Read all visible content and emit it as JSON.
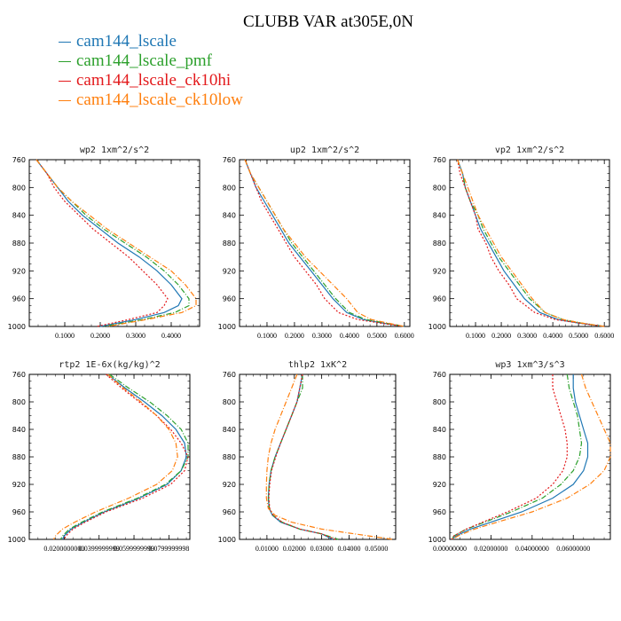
{
  "title": "CLUBB VAR at305E,0N",
  "legend": [
    {
      "label": "cam144_lscale",
      "color": "#1f77b4"
    },
    {
      "label": "cam144_lscale_pmf",
      "color": "#2ca02c"
    },
    {
      "label": "cam144_lscale_ck10hi",
      "color": "#e31a1c"
    },
    {
      "label": "cam144_lscale_ck10low",
      "color": "#ff7f0e"
    }
  ],
  "chart_data": [
    {
      "type": "line",
      "title": "wp2  1xm^2/s^2",
      "ylim": [
        760,
        1000
      ],
      "yticks": [
        760,
        800,
        840,
        880,
        920,
        960,
        1000
      ],
      "y_inverted": true,
      "xlim": [
        0,
        0.48
      ],
      "xticks": [
        0.1,
        0.2,
        0.3,
        0.4
      ],
      "xtick_labels": [
        "0.1000",
        "0.2000",
        "0.3000",
        "0.4000"
      ],
      "y": [
        760,
        780,
        800,
        820,
        840,
        860,
        880,
        900,
        920,
        940,
        960,
        970,
        980,
        990,
        1000
      ],
      "series": [
        {
          "name": "cam144_lscale",
          "color": "#1f77b4",
          "dash": "",
          "x": [
            0.02,
            0.05,
            0.08,
            0.11,
            0.15,
            0.2,
            0.25,
            0.31,
            0.36,
            0.4,
            0.43,
            0.42,
            0.38,
            0.3,
            0.2
          ]
        },
        {
          "name": "cam144_lscale_pmf",
          "color": "#2ca02c",
          "dash": "6,2,1,2",
          "x": [
            0.02,
            0.05,
            0.08,
            0.12,
            0.16,
            0.21,
            0.27,
            0.33,
            0.38,
            0.42,
            0.45,
            0.45,
            0.41,
            0.32,
            0.21
          ]
        },
        {
          "name": "cam144_lscale_ck10hi",
          "color": "#e31a1c",
          "dash": "2,2",
          "x": [
            0.02,
            0.05,
            0.07,
            0.1,
            0.14,
            0.18,
            0.23,
            0.28,
            0.32,
            0.36,
            0.39,
            0.38,
            0.36,
            0.28,
            0.19
          ]
        },
        {
          "name": "cam144_lscale_ck10low",
          "color": "#ff7f0e",
          "dash": "6,2,1,2",
          "x": [
            0.02,
            0.05,
            0.08,
            0.12,
            0.17,
            0.22,
            0.28,
            0.34,
            0.4,
            0.44,
            0.47,
            0.47,
            0.43,
            0.33,
            0.22
          ]
        }
      ]
    },
    {
      "type": "line",
      "title": "up2  1xm^2/s^2",
      "ylim": [
        760,
        1000
      ],
      "yticks": [
        760,
        800,
        840,
        880,
        920,
        960,
        1000
      ],
      "y_inverted": true,
      "xlim": [
        0,
        0.62
      ],
      "xticks": [
        0.1,
        0.2,
        0.3,
        0.4,
        0.5,
        0.6
      ],
      "xtick_labels": [
        "0.1000",
        "0.2000",
        "0.3000",
        "0.4000",
        "0.5000",
        "0.6000"
      ],
      "y": [
        760,
        780,
        800,
        820,
        840,
        860,
        880,
        900,
        920,
        940,
        960,
        980,
        990,
        995,
        1000
      ],
      "series": [
        {
          "name": "cam144_lscale",
          "color": "#1f77b4",
          "dash": "",
          "x": [
            0.02,
            0.04,
            0.06,
            0.09,
            0.12,
            0.15,
            0.18,
            0.22,
            0.26,
            0.3,
            0.34,
            0.39,
            0.45,
            0.52,
            0.6
          ]
        },
        {
          "name": "cam144_lscale_pmf",
          "color": "#2ca02c",
          "dash": "6,2,1,2",
          "x": [
            0.02,
            0.04,
            0.07,
            0.1,
            0.13,
            0.16,
            0.19,
            0.23,
            0.27,
            0.31,
            0.35,
            0.4,
            0.46,
            0.53,
            0.6
          ]
        },
        {
          "name": "cam144_lscale_ck10hi",
          "color": "#e31a1c",
          "dash": "2,2",
          "x": [
            0.02,
            0.04,
            0.06,
            0.08,
            0.11,
            0.14,
            0.17,
            0.2,
            0.24,
            0.28,
            0.31,
            0.36,
            0.43,
            0.51,
            0.6
          ]
        },
        {
          "name": "cam144_lscale_ck10low",
          "color": "#ff7f0e",
          "dash": "6,2,1,2",
          "x": [
            0.02,
            0.04,
            0.07,
            0.1,
            0.13,
            0.16,
            0.2,
            0.24,
            0.29,
            0.34,
            0.39,
            0.43,
            0.48,
            0.54,
            0.6
          ]
        }
      ]
    },
    {
      "type": "line",
      "title": "vp2  1xm^2/s^2",
      "ylim": [
        760,
        1000
      ],
      "yticks": [
        760,
        800,
        840,
        880,
        920,
        960,
        1000
      ],
      "y_inverted": true,
      "xlim": [
        0,
        0.62
      ],
      "xticks": [
        0.1,
        0.2,
        0.3,
        0.4,
        0.5,
        0.6
      ],
      "xtick_labels": [
        "0.1000",
        "0.2000",
        "0.3000",
        "0.4000",
        "0.5000",
        "0.6000"
      ],
      "y": [
        760,
        780,
        800,
        820,
        840,
        860,
        880,
        900,
        920,
        940,
        960,
        980,
        990,
        995,
        1000
      ],
      "series": [
        {
          "name": "cam144_lscale",
          "color": "#1f77b4",
          "dash": "",
          "x": [
            0.03,
            0.05,
            0.06,
            0.08,
            0.1,
            0.12,
            0.15,
            0.18,
            0.21,
            0.25,
            0.29,
            0.35,
            0.42,
            0.5,
            0.6
          ]
        },
        {
          "name": "cam144_lscale_pmf",
          "color": "#2ca02c",
          "dash": "6,2,1,2",
          "x": [
            0.03,
            0.05,
            0.06,
            0.08,
            0.11,
            0.13,
            0.16,
            0.19,
            0.23,
            0.27,
            0.31,
            0.37,
            0.44,
            0.51,
            0.6
          ]
        },
        {
          "name": "cam144_lscale_ck10hi",
          "color": "#e31a1c",
          "dash": "2,2",
          "x": [
            0.03,
            0.04,
            0.06,
            0.08,
            0.1,
            0.11,
            0.14,
            0.16,
            0.19,
            0.23,
            0.26,
            0.33,
            0.41,
            0.5,
            0.6
          ]
        },
        {
          "name": "cam144_lscale_ck10low",
          "color": "#ff7f0e",
          "dash": "6,2,1,2",
          "x": [
            0.03,
            0.05,
            0.07,
            0.09,
            0.11,
            0.14,
            0.17,
            0.2,
            0.24,
            0.28,
            0.32,
            0.37,
            0.44,
            0.51,
            0.6
          ]
        }
      ]
    },
    {
      "type": "line",
      "title": "rtp2  1E-6x(kg/kg)^2",
      "ylim": [
        760,
        1000
      ],
      "yticks": [
        760,
        800,
        840,
        880,
        920,
        960,
        1000
      ],
      "y_inverted": true,
      "xlim": [
        0,
        9.2
      ],
      "xticks": [
        2,
        4,
        6,
        8
      ],
      "xtick_labels": [
        "0.0200000000",
        "0.0399999999",
        "0.0599999999",
        "0.0799999998"
      ],
      "y": [
        760,
        780,
        800,
        820,
        840,
        860,
        880,
        900,
        920,
        940,
        960,
        975,
        985,
        995,
        1000
      ],
      "series": [
        {
          "name": "cam144_lscale",
          "color": "#1f77b4",
          "dash": "",
          "x": [
            4.5,
            5.5,
            6.6,
            7.6,
            8.4,
            8.9,
            9.0,
            8.7,
            7.9,
            6.3,
            4.3,
            3.1,
            2.4,
            2.0,
            1.9
          ]
        },
        {
          "name": "cam144_lscale_pmf",
          "color": "#2ca02c",
          "dash": "6,2,1,2",
          "x": [
            4.6,
            5.7,
            6.9,
            7.9,
            8.7,
            9.1,
            9.1,
            8.7,
            7.8,
            6.2,
            4.2,
            3.0,
            2.3,
            1.9,
            1.8
          ]
        },
        {
          "name": "cam144_lscale_ck10hi",
          "color": "#e31a1c",
          "dash": "2,2",
          "x": [
            4.4,
            5.3,
            6.3,
            7.3,
            8.1,
            8.7,
            9.1,
            8.9,
            8.1,
            6.5,
            4.4,
            3.2,
            2.5,
            2.1,
            2.0
          ]
        },
        {
          "name": "cam144_lscale_ck10low",
          "color": "#ff7f0e",
          "dash": "6,2,1,2",
          "x": [
            4.5,
            5.4,
            6.4,
            7.3,
            8.0,
            8.4,
            8.5,
            8.2,
            7.3,
            5.7,
            3.8,
            2.6,
            1.9,
            1.5,
            1.4
          ]
        }
      ]
    },
    {
      "type": "line",
      "title": "thlp2  1xK^2",
      "ylim": [
        760,
        1000
      ],
      "yticks": [
        760,
        800,
        840,
        880,
        920,
        960,
        1000
      ],
      "y_inverted": true,
      "xlim": [
        0,
        0.057
      ],
      "xticks": [
        0.01,
        0.02,
        0.03,
        0.04,
        0.05
      ],
      "xtick_labels": [
        "0.01000",
        "0.02000",
        "0.03000",
        "0.04000",
        "0.05000"
      ],
      "y": [
        760,
        780,
        800,
        820,
        840,
        860,
        880,
        900,
        920,
        940,
        955,
        965,
        975,
        985,
        992,
        1000
      ],
      "series": [
        {
          "name": "cam144_lscale",
          "color": "#1f77b4",
          "dash": "",
          "x": [
            0.023,
            0.022,
            0.021,
            0.019,
            0.017,
            0.015,
            0.013,
            0.0115,
            0.0108,
            0.0105,
            0.0108,
            0.012,
            0.015,
            0.022,
            0.03,
            0.034
          ]
        },
        {
          "name": "cam144_lscale_pmf",
          "color": "#2ca02c",
          "dash": "6,2,1,2",
          "x": [
            0.023,
            0.023,
            0.021,
            0.019,
            0.017,
            0.015,
            0.013,
            0.0115,
            0.0108,
            0.0106,
            0.0109,
            0.0122,
            0.0155,
            0.022,
            0.03,
            0.036
          ]
        },
        {
          "name": "cam144_lscale_ck10hi",
          "color": "#e31a1c",
          "dash": "2,2",
          "x": [
            0.023,
            0.022,
            0.021,
            0.019,
            0.017,
            0.015,
            0.0132,
            0.0117,
            0.011,
            0.0107,
            0.011,
            0.0123,
            0.0155,
            0.022,
            0.03,
            0.035
          ]
        },
        {
          "name": "cam144_lscale_ck10low",
          "color": "#ff7f0e",
          "dash": "6,2,1,2",
          "x": [
            0.021,
            0.019,
            0.017,
            0.015,
            0.013,
            0.0115,
            0.0105,
            0.01,
            0.0098,
            0.0098,
            0.0105,
            0.013,
            0.019,
            0.03,
            0.042,
            0.056
          ]
        }
      ]
    },
    {
      "type": "line",
      "title": "wp3  1xm^3/s^3",
      "ylim": [
        760,
        1000
      ],
      "yticks": [
        760,
        800,
        840,
        880,
        920,
        960,
        1000
      ],
      "y_inverted": true,
      "xlim": [
        0,
        0.078
      ],
      "xticks": [
        0,
        0.02,
        0.04,
        0.06
      ],
      "xtick_labels": [
        "0.00000000",
        "0.02000000",
        "0.04000000",
        "0.06000000"
      ],
      "y": [
        760,
        780,
        800,
        820,
        840,
        860,
        880,
        900,
        920,
        940,
        960,
        975,
        985,
        995,
        1000
      ],
      "series": [
        {
          "name": "cam144_lscale",
          "color": "#1f77b4",
          "dash": "",
          "x": [
            0.06,
            0.06,
            0.061,
            0.063,
            0.065,
            0.067,
            0.067,
            0.065,
            0.06,
            0.05,
            0.035,
            0.02,
            0.01,
            0.003,
            0.001
          ]
        },
        {
          "name": "cam144_lscale_pmf",
          "color": "#2ca02c",
          "dash": "6,2,1,2",
          "x": [
            0.057,
            0.058,
            0.06,
            0.062,
            0.063,
            0.064,
            0.063,
            0.06,
            0.054,
            0.045,
            0.03,
            0.017,
            0.008,
            0.002,
            0.001
          ]
        },
        {
          "name": "cam144_lscale_ck10hi",
          "color": "#e31a1c",
          "dash": "2,2",
          "x": [
            0.05,
            0.05,
            0.052,
            0.054,
            0.056,
            0.057,
            0.057,
            0.055,
            0.05,
            0.042,
            0.028,
            0.016,
            0.008,
            0.002,
            0.001
          ]
        },
        {
          "name": "cam144_lscale_ck10low",
          "color": "#ff7f0e",
          "dash": "6,2,1,2",
          "x": [
            0.064,
            0.066,
            0.069,
            0.072,
            0.075,
            0.078,
            0.078,
            0.075,
            0.068,
            0.057,
            0.04,
            0.023,
            0.012,
            0.004,
            0.001
          ]
        }
      ]
    }
  ]
}
